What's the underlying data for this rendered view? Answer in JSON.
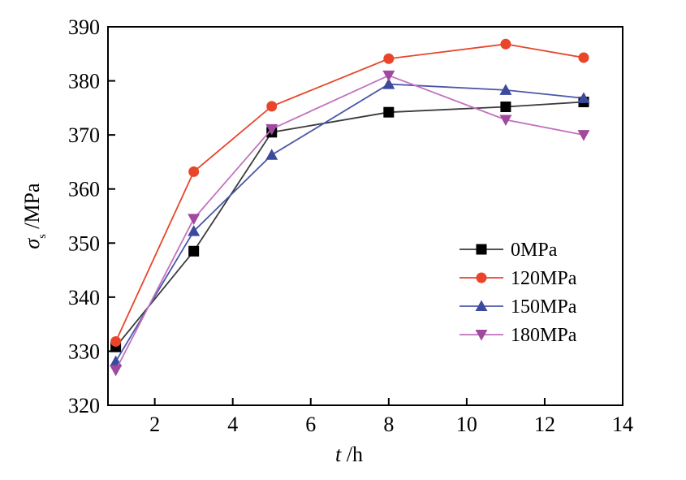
{
  "chart_data": {
    "type": "line",
    "title": "",
    "xlabel": "t /h",
    "xlabel_var": "t",
    "xlabel_unit": " /h",
    "ylabel": "σs /MPa",
    "ylabel_var": "σ",
    "ylabel_sub": "s",
    "ylabel_unit": " /MPa",
    "xlim": [
      0.8,
      14
    ],
    "ylim": [
      320,
      390
    ],
    "xticks": [
      2,
      4,
      6,
      8,
      10,
      12,
      14
    ],
    "yticks": [
      320,
      330,
      340,
      350,
      360,
      370,
      380,
      390
    ],
    "grid": false,
    "legend_position": "center-right",
    "x": [
      1,
      3,
      5,
      8,
      11,
      13
    ],
    "series": [
      {
        "name": "0MPa",
        "marker": "square",
        "color": "#000000",
        "line_color": "#3a3a3a",
        "values": [
          330.8,
          348.5,
          370.5,
          374.2,
          375.2,
          376.1
        ]
      },
      {
        "name": "120MPa",
        "marker": "circle",
        "color": "#e8452a",
        "line_color": "#e8452a",
        "values": [
          331.8,
          363.2,
          375.3,
          384.1,
          386.8,
          384.3
        ]
      },
      {
        "name": "150MPa",
        "marker": "triangle-up",
        "color": "#3c4a9c",
        "line_color": "#4a57a8",
        "values": [
          328.1,
          352.2,
          366.3,
          379.4,
          378.3,
          376.8
        ]
      },
      {
        "name": "180MPa",
        "marker": "triangle-down",
        "color": "#a04a9e",
        "line_color": "#c270be",
        "values": [
          326.5,
          354.5,
          371.1,
          381.0,
          372.8,
          370.0
        ]
      }
    ]
  }
}
